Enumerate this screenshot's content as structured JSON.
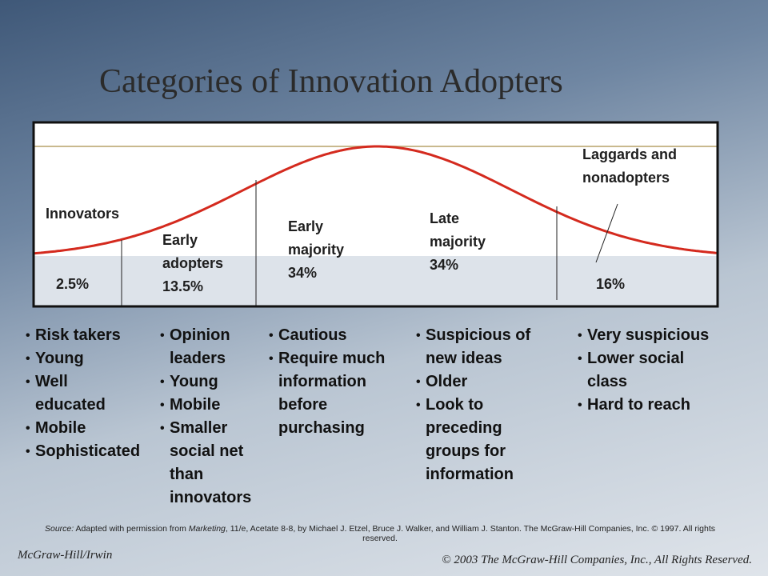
{
  "title": "Categories of Innovation Adopters",
  "segments": [
    {
      "label": "Innovators",
      "share": "2.5%"
    },
    {
      "label": "Early adopters",
      "share": "13.5%"
    },
    {
      "label": "Early majority",
      "share": "34%"
    },
    {
      "label": "Late majority",
      "share": "34%"
    },
    {
      "label": "Laggards and nonadopters",
      "share": "16%"
    }
  ],
  "traits": [
    [
      "Risk takers",
      "Young",
      "Well educated",
      "Mobile",
      "Sophisticated"
    ],
    [
      "Opinion leaders",
      "Young",
      "Mobile",
      "Smaller social net than innovators"
    ],
    [
      "Cautious",
      "Require much information before purchasing"
    ],
    [
      "Suspicious of new ideas",
      "Older",
      "Look to preceding groups for information"
    ],
    [
      "Very suspicious",
      "Lower social class",
      "Hard to reach"
    ]
  ],
  "source": {
    "label": "Source:",
    "pre": "Adapted with permission from",
    "book": "Marketing",
    "post": ", 11/e, Acetate 8-8, by Michael J. Etzel, Bruce J. Walker, and William J. Stanton. The McGraw-Hill Companies, Inc. © 1997. All rights reserved."
  },
  "footer": {
    "left": "McGraw-Hill/Irwin",
    "right": "© 2003 The McGraw-Hill Companies, Inc., All Rights Reserved."
  }
}
